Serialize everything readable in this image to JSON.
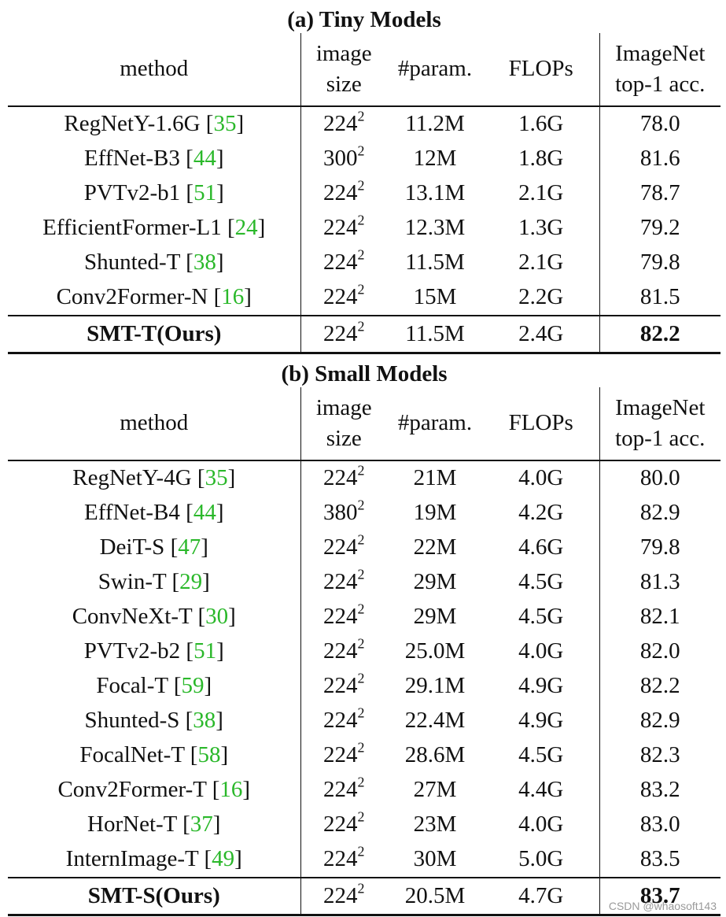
{
  "tables": [
    {
      "title": "(a) Tiny Models",
      "header": {
        "method": "method",
        "size_line1": "image",
        "size_line2": "size",
        "param": "#param.",
        "flops": "FLOPs",
        "acc_line1": "ImageNet",
        "acc_line2": "top-1 acc."
      },
      "rows": [
        {
          "name": "RegNetY-1.6G ",
          "ref": "35",
          "size_base": "224",
          "size_exp": "2",
          "param": "11.2M",
          "flops": "1.6G",
          "acc": "78.0"
        },
        {
          "name": "EffNet-B3 ",
          "ref": "44",
          "size_base": "300",
          "size_exp": "2",
          "param": "12M",
          "flops": "1.8G",
          "acc": "81.6"
        },
        {
          "name": "PVTv2-b1 ",
          "ref": "51",
          "size_base": "224",
          "size_exp": "2",
          "param": "13.1M",
          "flops": "2.1G",
          "acc": "78.7"
        },
        {
          "name": "EfficientFormer-L1 ",
          "ref": "24",
          "size_base": "224",
          "size_exp": "2",
          "param": "12.3M",
          "flops": "1.3G",
          "acc": "79.2"
        },
        {
          "name": "Shunted-T ",
          "ref": "38",
          "size_base": "224",
          "size_exp": "2",
          "param": "11.5M",
          "flops": "2.1G",
          "acc": "79.8"
        },
        {
          "name": "Conv2Former-N ",
          "ref": "16",
          "size_base": "224",
          "size_exp": "2",
          "param": "15M",
          "flops": "2.2G",
          "acc": "81.5"
        }
      ],
      "ours": {
        "name": "SMT-T(Ours)",
        "size_base": "224",
        "size_exp": "2",
        "param": "11.5M",
        "flops": "2.4G",
        "acc": "82.2"
      }
    },
    {
      "title": "(b) Small Models",
      "header": {
        "method": "method",
        "size_line1": "image",
        "size_line2": "size",
        "param": "#param.",
        "flops": "FLOPs",
        "acc_line1": "ImageNet",
        "acc_line2": "top-1 acc."
      },
      "rows": [
        {
          "name": "RegNetY-4G ",
          "ref": "35",
          "size_base": "224",
          "size_exp": "2",
          "param": "21M",
          "flops": "4.0G",
          "acc": "80.0"
        },
        {
          "name": "EffNet-B4 ",
          "ref": "44",
          "size_base": "380",
          "size_exp": "2",
          "param": "19M",
          "flops": "4.2G",
          "acc": "82.9"
        },
        {
          "name": "DeiT-S ",
          "ref": "47",
          "size_base": "224",
          "size_exp": "2",
          "param": "22M",
          "flops": "4.6G",
          "acc": "79.8"
        },
        {
          "name": "Swin-T ",
          "ref": "29",
          "size_base": "224",
          "size_exp": "2",
          "param": "29M",
          "flops": "4.5G",
          "acc": "81.3"
        },
        {
          "name": "ConvNeXt-T  ",
          "ref": "30",
          "size_base": "224",
          "size_exp": "2",
          "param": "29M",
          "flops": "4.5G",
          "acc": "82.1"
        },
        {
          "name": "PVTv2-b2  ",
          "ref": "51",
          "size_base": "224",
          "size_exp": "2",
          "param": "25.0M",
          "flops": "4.0G",
          "acc": "82.0"
        },
        {
          "name": "Focal-T  ",
          "ref": "59",
          "size_base": "224",
          "size_exp": "2",
          "param": "29.1M",
          "flops": "4.9G",
          "acc": "82.2"
        },
        {
          "name": "Shunted-S ",
          "ref": "38",
          "size_base": "224",
          "size_exp": "2",
          "param": "22.4M",
          "flops": "4.9G",
          "acc": "82.9"
        },
        {
          "name": "FocalNet-T ",
          "ref": "58",
          "size_base": "224",
          "size_exp": "2",
          "param": "28.6M",
          "flops": "4.5G",
          "acc": "82.3"
        },
        {
          "name": "Conv2Former-T ",
          "ref": "16",
          "size_base": "224",
          "size_exp": "2",
          "param": "27M",
          "flops": "4.4G",
          "acc": "83.2"
        },
        {
          "name": "HorNet-T ",
          "ref": "37",
          "size_base": "224",
          "size_exp": "2",
          "param": "23M",
          "flops": "4.0G",
          "acc": "83.0"
        },
        {
          "name": "InternImage-T ",
          "ref": "49",
          "size_base": "224",
          "size_exp": "2",
          "param": "30M",
          "flops": "5.0G",
          "acc": "83.5"
        }
      ],
      "ours": {
        "name": "SMT-S(Ours)",
        "size_base": "224",
        "size_exp": "2",
        "param": "20.5M",
        "flops": "4.7G",
        "acc": "83.7"
      }
    }
  ],
  "colors": {
    "reference_link": "#2ab82a",
    "text": "#111111",
    "watermark": "#9a9a9a"
  },
  "watermark": "CSDN @whaosoft143"
}
